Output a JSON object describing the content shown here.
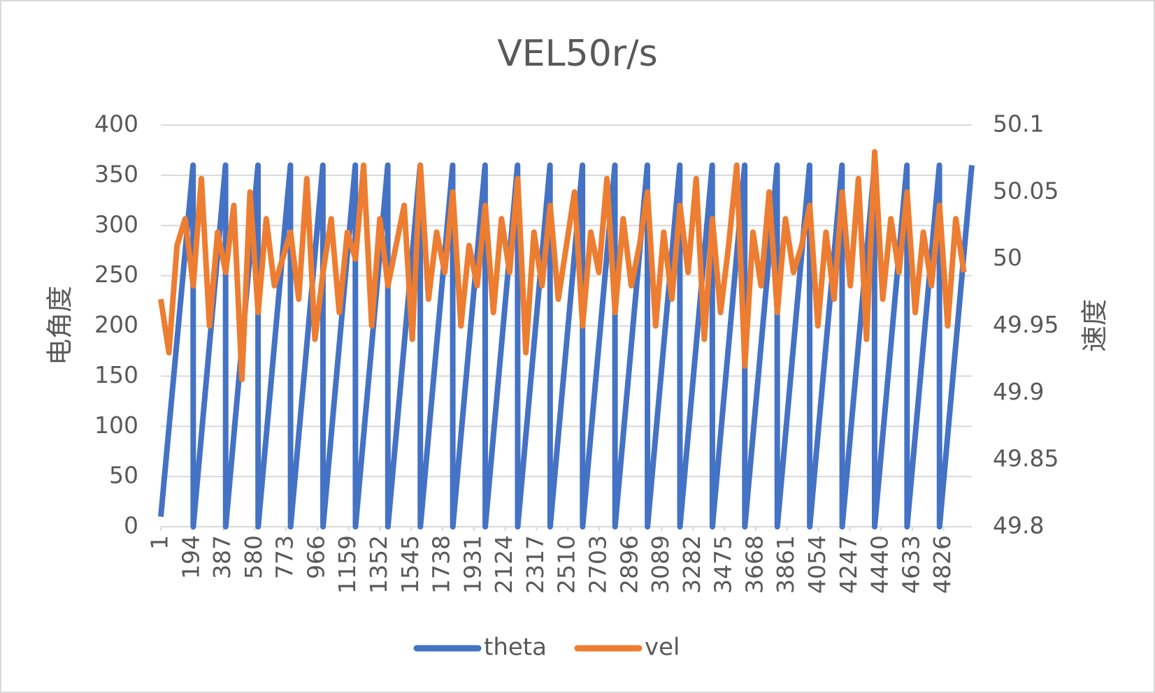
{
  "chart_data": {
    "type": "line",
    "title": "VEL50r/s",
    "y_label": "电角度",
    "y2_label": "速度",
    "xlim": [
      1,
      5000
    ],
    "xticks": [
      1,
      194,
      387,
      580,
      773,
      966,
      1159,
      1352,
      1545,
      1738,
      1931,
      2124,
      2317,
      2510,
      2703,
      2896,
      3089,
      3282,
      3475,
      3668,
      3861,
      4054,
      4247,
      4440,
      4633,
      4826
    ],
    "ylim": [
      0,
      400
    ],
    "yticks": [
      0,
      50,
      100,
      150,
      200,
      250,
      300,
      350,
      400
    ],
    "y2lim": [
      49.8,
      50.1
    ],
    "y2ticks": [
      49.8,
      49.85,
      49.9,
      49.95,
      50,
      50.05,
      50.1
    ],
    "grid": true,
    "legend": "bottom",
    "series": [
      {
        "name": "theta",
        "color": "#4472c4",
        "x": [
          1,
          200,
          201,
          400,
          401,
          600,
          601,
          800,
          801,
          1000,
          1001,
          1200,
          1201,
          1400,
          1401,
          1600,
          1601,
          1800,
          1801,
          2000,
          2001,
          2200,
          2201,
          2400,
          2401,
          2600,
          2601,
          2800,
          2801,
          3000,
          3001,
          3200,
          3201,
          3400,
          3401,
          3600,
          3601,
          3800,
          3801,
          4000,
          4001,
          4200,
          4201,
          4400,
          4401,
          4600,
          4601,
          4800,
          4801,
          5000
        ],
        "values": [
          10,
          360,
          0,
          360,
          0,
          360,
          0,
          360,
          0,
          360,
          0,
          360,
          0,
          360,
          0,
          360,
          0,
          360,
          0,
          360,
          0,
          360,
          0,
          360,
          0,
          360,
          0,
          360,
          0,
          360,
          0,
          360,
          0,
          360,
          0,
          360,
          0,
          360,
          0,
          360,
          0,
          360,
          0,
          360,
          0,
          360,
          0,
          360,
          0,
          360
        ]
      },
      {
        "name": "vel",
        "color": "#ed7d31",
        "axis": "y2",
        "x": [
          1,
          51,
          101,
          151,
          201,
          251,
          301,
          351,
          401,
          451,
          501,
          551,
          601,
          651,
          701,
          751,
          801,
          851,
          901,
          951,
          1001,
          1051,
          1101,
          1151,
          1201,
          1251,
          1301,
          1351,
          1401,
          1451,
          1501,
          1551,
          1601,
          1651,
          1701,
          1751,
          1801,
          1851,
          1901,
          1951,
          2001,
          2051,
          2101,
          2151,
          2201,
          2251,
          2301,
          2351,
          2401,
          2451,
          2501,
          2551,
          2601,
          2651,
          2701,
          2751,
          2801,
          2851,
          2901,
          2951,
          3001,
          3051,
          3101,
          3151,
          3201,
          3251,
          3301,
          3351,
          3401,
          3451,
          3501,
          3551,
          3601,
          3651,
          3701,
          3751,
          3801,
          3851,
          3901,
          3951,
          4001,
          4051,
          4101,
          4151,
          4201,
          4251,
          4301,
          4351,
          4401,
          4451,
          4501,
          4551,
          4601,
          4651,
          4701,
          4751,
          4801,
          4851,
          4901,
          4951
        ],
        "values": [
          49.97,
          49.93,
          50.01,
          50.03,
          49.98,
          50.06,
          49.95,
          50.02,
          49.99,
          50.04,
          49.91,
          50.05,
          49.96,
          50.03,
          49.98,
          50,
          50.02,
          49.97,
          50.06,
          49.94,
          49.99,
          50.03,
          49.96,
          50.02,
          50,
          50.07,
          49.95,
          50.03,
          49.98,
          50.01,
          50.04,
          49.94,
          50.07,
          49.97,
          50.02,
          49.99,
          50.05,
          49.95,
          50.01,
          49.98,
          50.04,
          49.96,
          50.03,
          49.99,
          50.06,
          49.93,
          50.02,
          49.98,
          50.04,
          49.97,
          50.01,
          50.05,
          49.95,
          50.02,
          49.99,
          50.06,
          49.96,
          50.03,
          49.98,
          50.01,
          50.05,
          49.95,
          50.02,
          49.97,
          50.04,
          49.99,
          50.06,
          49.94,
          50.03,
          49.96,
          50.01,
          50.07,
          49.92,
          50.02,
          49.98,
          50.05,
          49.96,
          50.03,
          49.99,
          50.01,
          50.04,
          49.95,
          50.02,
          49.97,
          50.05,
          49.98,
          50.06,
          49.94,
          50.08,
          49.97,
          50.03,
          49.99,
          50.05,
          49.96,
          50.02,
          49.98,
          50.04,
          49.95,
          50.03,
          49.99
        ]
      }
    ]
  }
}
